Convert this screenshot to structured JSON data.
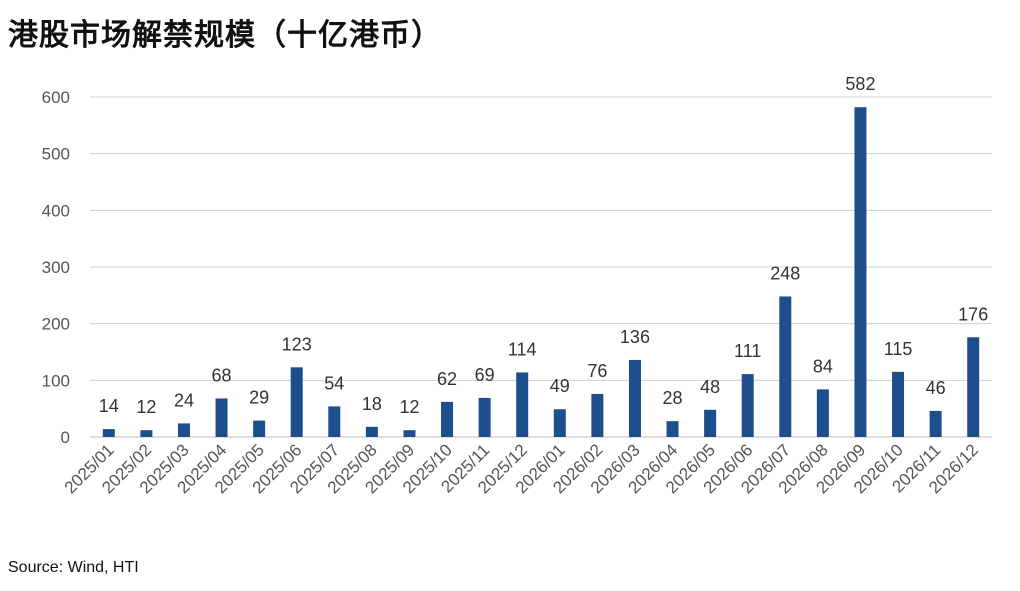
{
  "title": "港股市场解禁规模（十亿港币）",
  "source": "Source: Wind, HTI",
  "chart_data": {
    "type": "bar",
    "title": "港股市场解禁规模（十亿港币）",
    "xlabel": "",
    "ylabel": "",
    "ylim": [
      0,
      600
    ],
    "yticks": [
      0,
      100,
      200,
      300,
      400,
      500,
      600
    ],
    "grid": true,
    "bar_color": "#1f4e8c",
    "categories": [
      "2025/01",
      "2025/02",
      "2025/03",
      "2025/04",
      "2025/05",
      "2025/06",
      "2025/07",
      "2025/08",
      "2025/09",
      "2025/10",
      "2025/11",
      "2025/12",
      "2026/01",
      "2026/02",
      "2026/03",
      "2026/04",
      "2026/05",
      "2026/06",
      "2026/07",
      "2026/08",
      "2026/09",
      "2026/10",
      "2026/11",
      "2026/12"
    ],
    "values": [
      14,
      12,
      24,
      68,
      29,
      123,
      54,
      18,
      12,
      62,
      69,
      114,
      49,
      76,
      136,
      28,
      48,
      111,
      248,
      84,
      582,
      115,
      46,
      176
    ]
  }
}
